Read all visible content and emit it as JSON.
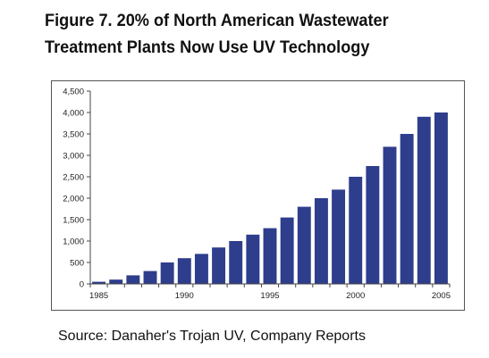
{
  "header": {
    "title_line1": "Figure 7. 20% of North American Wastewater",
    "title_line2": "Treatment Plants Now Use UV Technology"
  },
  "footer": {
    "source": "Source: Danaher's Trojan UV, Company Reports"
  },
  "chart_data": {
    "type": "bar",
    "title": "Figure 7. 20% of North American Wastewater Treatment Plants Now Use UV Technology",
    "xlabel": "",
    "ylabel": "",
    "ylim": [
      0,
      4500
    ],
    "yticks": [
      0,
      500,
      1000,
      1500,
      2000,
      2500,
      3000,
      3500,
      4000,
      4500
    ],
    "ytick_labels": [
      "0",
      "500",
      "1,000",
      "1,500",
      "2,000",
      "2,500",
      "3,000",
      "3,500",
      "4,000",
      "4,500"
    ],
    "xtick_labels": [
      "1985",
      "1990",
      "1995",
      "2000",
      "2005"
    ],
    "categories": [
      1985,
      1986,
      1987,
      1988,
      1989,
      1990,
      1991,
      1992,
      1993,
      1994,
      1995,
      1996,
      1997,
      1998,
      1999,
      2000,
      2001,
      2002,
      2003,
      2004,
      2005
    ],
    "values": [
      50,
      100,
      200,
      300,
      500,
      600,
      700,
      850,
      1000,
      1150,
      1300,
      1550,
      1800,
      2000,
      2200,
      2500,
      2750,
      3200,
      3500,
      3900,
      4000
    ],
    "bar_color": "#2e3d8c",
    "grid": false,
    "legend": "none"
  }
}
